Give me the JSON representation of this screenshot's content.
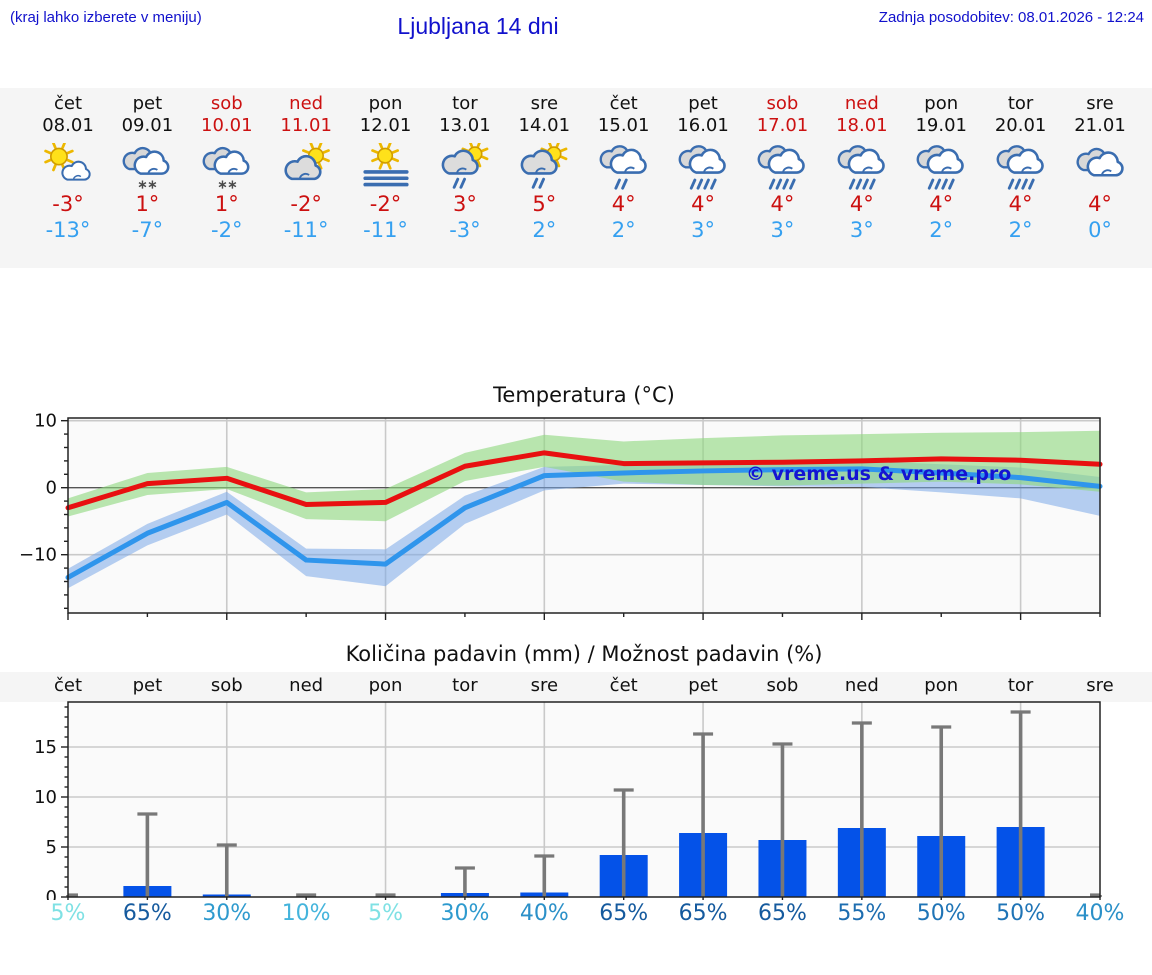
{
  "header": {
    "hint": "(kraj lahko izberete v meniju)",
    "title": "Ljubljana 14 dni",
    "updated": "Zadnja posodobitev: 08.01.2026 - 12:24"
  },
  "days": [
    {
      "name": "čet",
      "date": "08.01",
      "weekend": false,
      "icon": "sun-cloud",
      "tmax": "-3°",
      "tmin": "-13°",
      "pop": "5%",
      "pop_color": "#7fe1e4"
    },
    {
      "name": "pet",
      "date": "09.01",
      "weekend": false,
      "icon": "snow",
      "tmax": "1°",
      "tmin": "-7°",
      "pop": "65%",
      "pop_color": "#155a9e"
    },
    {
      "name": "sob",
      "date": "10.01",
      "weekend": true,
      "icon": "snow",
      "tmax": "1°",
      "tmin": "-2°",
      "pop": "30%",
      "pop_color": "#2e9ace"
    },
    {
      "name": "ned",
      "date": "11.01",
      "weekend": true,
      "icon": "cloud-sun",
      "tmax": "-2°",
      "tmin": "-11°",
      "pop": "10%",
      "pop_color": "#44b4dc"
    },
    {
      "name": "pon",
      "date": "12.01",
      "weekend": false,
      "icon": "fog-sun",
      "tmax": "-2°",
      "tmin": "-11°",
      "pop": "5%",
      "pop_color": "#7fe1e4"
    },
    {
      "name": "tor",
      "date": "13.01",
      "weekend": false,
      "icon": "sun-rain",
      "tmax": "3°",
      "tmin": "-3°",
      "pop": "30%",
      "pop_color": "#2e9ace"
    },
    {
      "name": "sre",
      "date": "14.01",
      "weekend": false,
      "icon": "sun-rain",
      "tmax": "5°",
      "tmin": "2°",
      "pop": "40%",
      "pop_color": "#2b90c8"
    },
    {
      "name": "čet",
      "date": "15.01",
      "weekend": false,
      "icon": "rain-light",
      "tmax": "4°",
      "tmin": "2°",
      "pop": "65%",
      "pop_color": "#155a9e"
    },
    {
      "name": "pet",
      "date": "16.01",
      "weekend": false,
      "icon": "rain",
      "tmax": "4°",
      "tmin": "3°",
      "pop": "65%",
      "pop_color": "#155a9e"
    },
    {
      "name": "sob",
      "date": "17.01",
      "weekend": true,
      "icon": "rain",
      "tmax": "4°",
      "tmin": "3°",
      "pop": "65%",
      "pop_color": "#155a9e"
    },
    {
      "name": "ned",
      "date": "18.01",
      "weekend": true,
      "icon": "rain",
      "tmax": "4°",
      "tmin": "3°",
      "pop": "55%",
      "pop_color": "#1d6db0"
    },
    {
      "name": "pon",
      "date": "19.01",
      "weekend": false,
      "icon": "rain",
      "tmax": "4°",
      "tmin": "2°",
      "pop": "50%",
      "pop_color": "#1f74b6"
    },
    {
      "name": "tor",
      "date": "20.01",
      "weekend": false,
      "icon": "rain",
      "tmax": "4°",
      "tmin": "2°",
      "pop": "50%",
      "pop_color": "#1f74b6"
    },
    {
      "name": "sre",
      "date": "21.01",
      "weekend": false,
      "icon": "cloudy",
      "tmax": "4°",
      "tmin": "0°",
      "pop": "40%",
      "pop_color": "#2b90c8"
    }
  ],
  "temp_chart": {
    "title": "Temperatura (°C)",
    "watermark": "© vreme.us & vreme.pro"
  },
  "precip_chart": {
    "title": "Količina padavin (mm) / Možnost padavin (%)"
  },
  "chart_data": [
    {
      "type": "line",
      "title": "Temperatura (°C)",
      "x_labels": [
        "08.01",
        "09.01",
        "10.01",
        "11.01",
        "12.01",
        "13.01",
        "14.01",
        "15.01",
        "16.01",
        "17.01",
        "18.01",
        "19.01",
        "20.01",
        "21.01"
      ],
      "ylim": [
        -18.7,
        10.4
      ],
      "yticks": [
        10,
        0,
        -10
      ],
      "grid": true,
      "series": [
        {
          "name": "max-temp",
          "values": [
            -3.0,
            0.6,
            1.4,
            -2.5,
            -2.2,
            3.2,
            5.2,
            3.6,
            3.7,
            3.8,
            4.0,
            4.3,
            4.1,
            3.5
          ]
        },
        {
          "name": "max-temp-band-upper",
          "values": [
            -1.6,
            2.2,
            3.1,
            -0.7,
            -0.2,
            5.2,
            7.9,
            6.9,
            7.4,
            7.8,
            8.0,
            8.2,
            8.3,
            8.5
          ]
        },
        {
          "name": "max-temp-band-lower",
          "values": [
            -4.3,
            -1.1,
            -0.2,
            -4.7,
            -5.0,
            1.0,
            3.1,
            0.9,
            0.4,
            0.3,
            0.6,
            0.9,
            0.5,
            -0.6
          ]
        },
        {
          "name": "min-temp",
          "values": [
            -13.4,
            -6.8,
            -2.2,
            -10.8,
            -11.4,
            -3.0,
            1.8,
            2.2,
            2.5,
            2.7,
            2.8,
            2.2,
            1.5,
            0.2
          ]
        },
        {
          "name": "min-temp-band-upper",
          "values": [
            -12.1,
            -5.4,
            -0.6,
            -9.1,
            -9.2,
            -1.2,
            3.1,
            3.4,
            3.7,
            3.9,
            4.0,
            3.5,
            3.0,
            1.6
          ]
        },
        {
          "name": "min-temp-band-lower",
          "values": [
            -15.0,
            -8.6,
            -4.0,
            -13.2,
            -14.7,
            -5.4,
            -0.4,
            0.6,
            0.4,
            0.2,
            0.1,
            -0.7,
            -1.6,
            -4.2
          ]
        }
      ]
    },
    {
      "type": "bar",
      "title": "Količina padavin (mm) / Možnost padavin (%)",
      "categories": [
        "čet",
        "pet",
        "sob",
        "ned",
        "pon",
        "tor",
        "sre",
        "čet",
        "pet",
        "sob",
        "ned",
        "pon",
        "tor",
        "sre"
      ],
      "values": [
        0,
        1.1,
        0.25,
        0,
        0,
        0.4,
        0.45,
        4.2,
        6.4,
        5.7,
        6.9,
        6.1,
        7.0,
        0
      ],
      "whisker_max": [
        0.2,
        8.3,
        5.2,
        0.2,
        0.2,
        2.9,
        4.1,
        10.7,
        16.3,
        15.3,
        17.4,
        17.0,
        18.5,
        0.2
      ],
      "pop_percent": [
        5,
        65,
        30,
        10,
        5,
        30,
        40,
        65,
        65,
        65,
        55,
        50,
        50,
        40
      ],
      "ylim": [
        0,
        19.5
      ],
      "yticks": [
        0,
        5,
        10,
        15
      ],
      "grid": true
    }
  ],
  "colors": {
    "header_blue": "#1111cc",
    "day_black": "#111111",
    "weekend_red": "#cc1111",
    "tmax_text_red": "#cc1010",
    "tmin_text_blue": "#35a0f0",
    "strip_bg": "#f5f5f5",
    "plot_bg": "#fafafa",
    "grid_gray": "#c9c9c9",
    "zero_line": "#555555",
    "axis_black": "#222222",
    "tmax_line": "#e81010",
    "tmin_line": "#2f95ec",
    "tmax_band": "#8fd97f",
    "tmin_band": "#7aa7e8",
    "bar_blue": "#0452e8",
    "whisker_gray": "#787878",
    "watermark_blue": "#1414d2",
    "icon_outline_blue": "#3a6db0"
  }
}
